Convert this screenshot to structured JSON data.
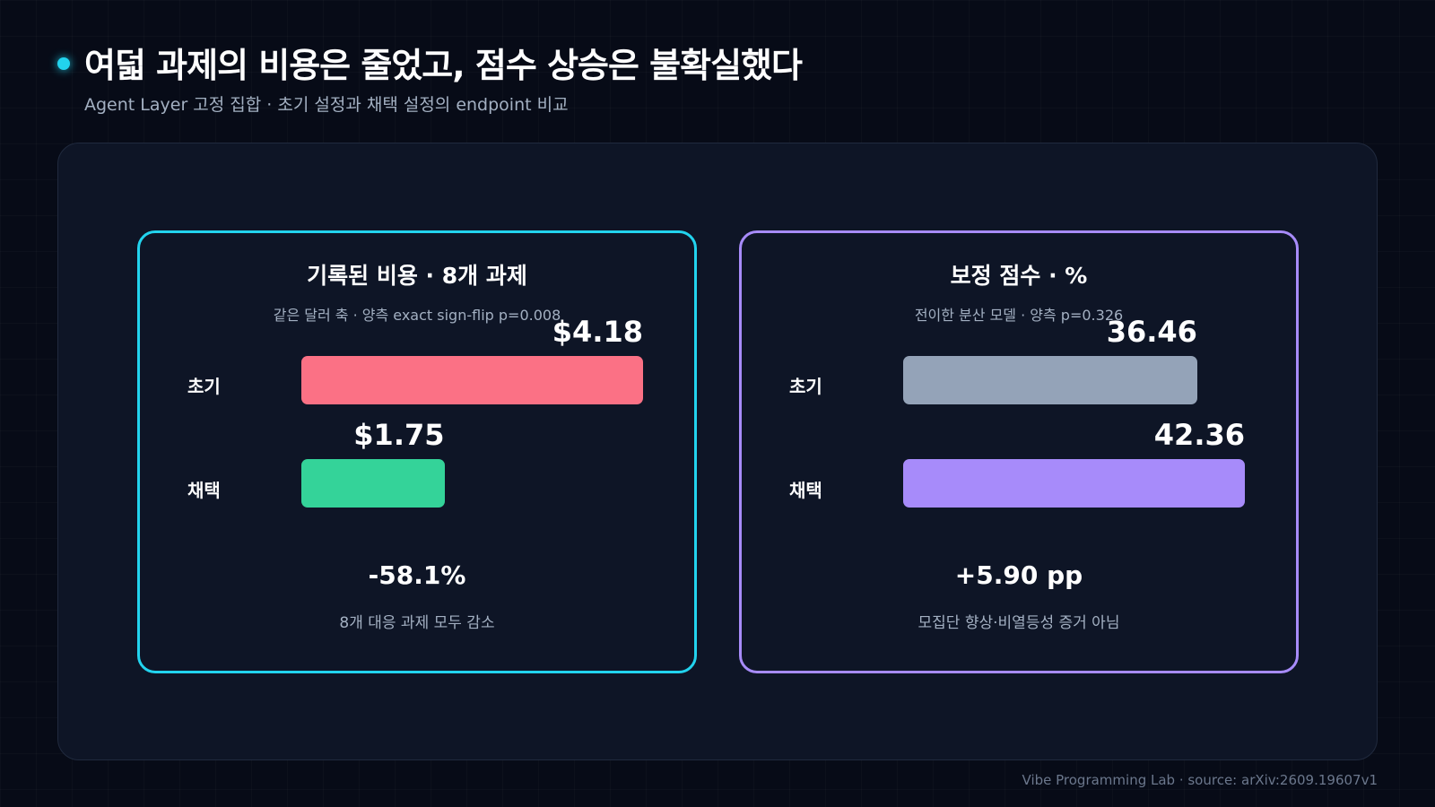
{
  "header": {
    "title": "여덟 과제의 비용은 줄었고, 점수 상승은 불확실했다",
    "subtitle": "Agent Layer 고정 집합 · 초기 설정과 채택 설정의 endpoint 비교"
  },
  "footer": {
    "credit": "Vibe Programming Lab · source: arXiv:2609.19607v1"
  },
  "colors": {
    "cost_card_border": "#22d3ee",
    "score_card_border": "#a78bfa",
    "cost_initial": "#fb7185",
    "cost_adopted": "#34d399",
    "score_initial": "#94a3b8",
    "score_adopted": "#a78bfa"
  },
  "chart_data": [
    {
      "type": "bar",
      "orientation": "horizontal",
      "title": "기록된 비용 · 8개 과제",
      "subtitle": "같은 달러 축 · 양측 exact sign-flip p=0.008",
      "categories": [
        "초기",
        "채택"
      ],
      "values": [
        4.18,
        1.75
      ],
      "value_labels": [
        "$4.18",
        "$1.75"
      ],
      "xlim": [
        0,
        4.18
      ],
      "delta": "-58.1%",
      "note": "8개 대응 과제 모두 감소",
      "grid": false
    },
    {
      "type": "bar",
      "orientation": "horizontal",
      "title": "보정 점수 · %",
      "subtitle": "전이한 분산 모델 · 양측 p=0.326",
      "categories": [
        "초기",
        "채택"
      ],
      "values": [
        36.46,
        42.36
      ],
      "value_labels": [
        "36.46",
        "42.36"
      ],
      "xlim": [
        0,
        42.36
      ],
      "delta": "+5.90 pp",
      "note": "모집단 향상·비열등성 증거 아님",
      "grid": false
    }
  ]
}
